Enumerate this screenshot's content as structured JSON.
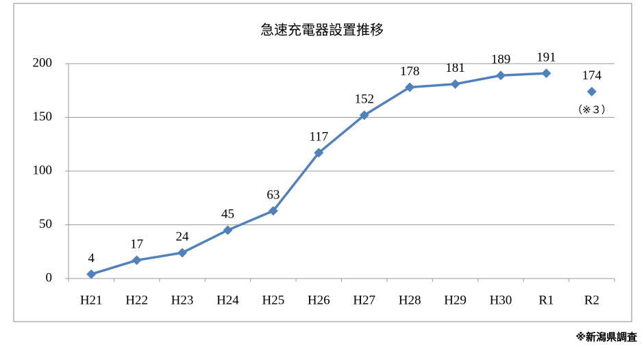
{
  "chart_data": {
    "type": "line",
    "title": "急速充電器設置推移",
    "categories": [
      "H21",
      "H22",
      "H23",
      "H24",
      "H25",
      "H26",
      "H27",
      "H28",
      "H29",
      "H30",
      "R1",
      "R2"
    ],
    "series": [
      {
        "color": "#4f81bd",
        "values": [
          4,
          17,
          24,
          45,
          63,
          117,
          152,
          178,
          181,
          189,
          191,
          null
        ]
      },
      {
        "color": "#4f81bd",
        "values": [
          null,
          null,
          null,
          null,
          null,
          null,
          null,
          null,
          null,
          null,
          null,
          174
        ]
      }
    ],
    "ylim": [
      0,
      200
    ],
    "yticks": [
      0,
      50,
      100,
      150,
      200
    ],
    "grid": true,
    "annotation": "（※３）",
    "source": "※新潟県調査"
  }
}
